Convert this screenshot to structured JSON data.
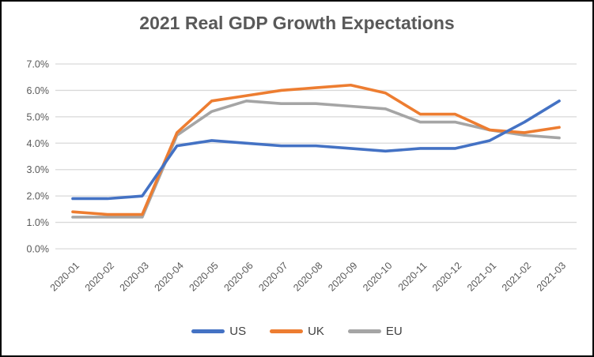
{
  "title": "2021 Real GDP Growth Expectations",
  "chart_data": {
    "type": "line",
    "title": "2021 Real GDP Growth Expectations",
    "categories": [
      "2020-01",
      "2020-02",
      "2020-03",
      "2020-04",
      "2020-05",
      "2020-06",
      "2020-07",
      "2020-08",
      "2020-09",
      "2020-10",
      "2020-11",
      "2020-12",
      "2021-01",
      "2021-02",
      "2021-03"
    ],
    "series": [
      {
        "name": "US",
        "color": "#4472C4",
        "values": [
          1.9,
          1.9,
          2.0,
          3.9,
          4.1,
          4.0,
          3.9,
          3.9,
          3.8,
          3.7,
          3.8,
          3.8,
          4.1,
          4.8,
          5.6
        ]
      },
      {
        "name": "UK",
        "color": "#ED7D31",
        "values": [
          1.4,
          1.3,
          1.3,
          4.4,
          5.6,
          5.8,
          6.0,
          6.1,
          6.2,
          5.9,
          5.1,
          5.1,
          4.5,
          4.4,
          4.6
        ]
      },
      {
        "name": "EU",
        "color": "#A5A5A5",
        "values": [
          1.2,
          1.2,
          1.2,
          4.3,
          5.2,
          5.6,
          5.5,
          5.5,
          5.4,
          5.3,
          4.8,
          4.8,
          4.5,
          4.3,
          4.2
        ]
      }
    ],
    "y_axis": {
      "min": 0,
      "max": 7,
      "step": 1,
      "tick_labels": [
        "0.0%",
        "1.0%",
        "2.0%",
        "3.0%",
        "4.0%",
        "5.0%",
        "6.0%",
        "7.0%"
      ]
    },
    "xlabel": "",
    "ylabel": "",
    "grid": true,
    "gridline_color": "#D9D9D9",
    "axis_text_color": "#595959",
    "legend_position": "bottom",
    "draw_order": [
      "EU",
      "UK",
      "US"
    ]
  }
}
